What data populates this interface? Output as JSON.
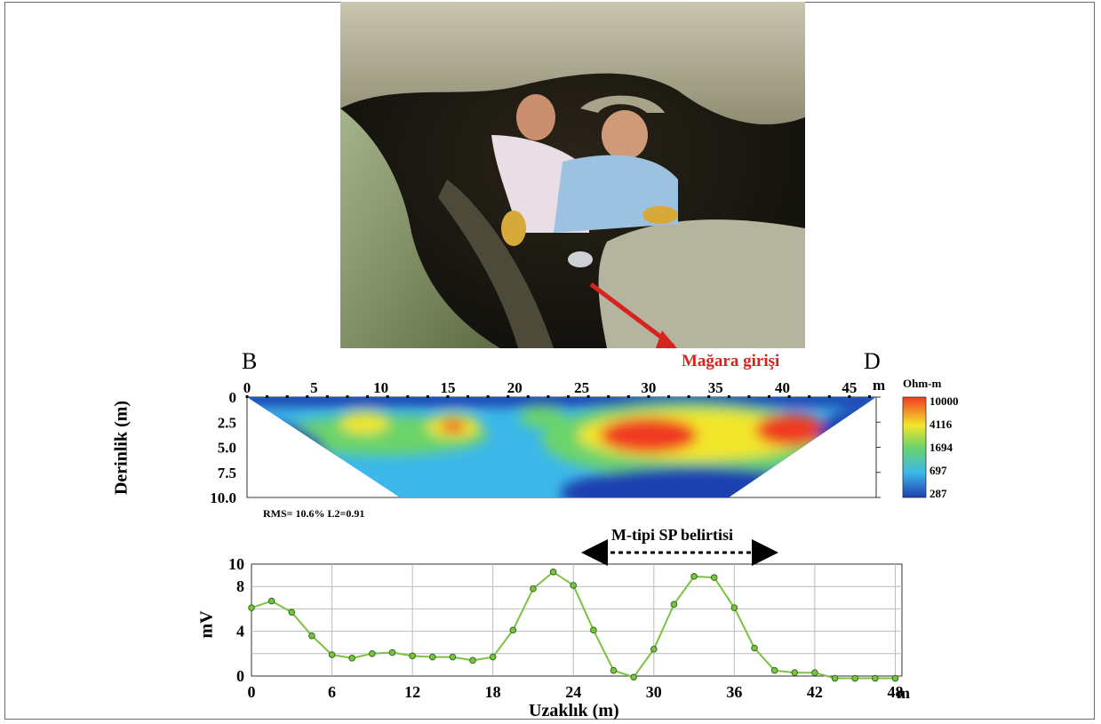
{
  "photo": {
    "annotation": "Mağara girişi",
    "annotation_color": "#d7231e"
  },
  "resistivity_section": {
    "left_label": "B",
    "right_label": "D",
    "x_ticks": [
      "0",
      "5",
      "10",
      "15",
      "20",
      "25",
      "30",
      "35",
      "40",
      "45"
    ],
    "x_unit": "m",
    "y_ticks": [
      "0",
      "2.5",
      "5.0",
      "7.5",
      "10.0"
    ],
    "y_label": "Derinlik  (m)",
    "rms_text": "RMS=  10.6% L2=0.91",
    "colorbar_title": "Ohm-m",
    "colorbar_ticks": [
      "10000",
      "4116",
      "1694",
      "697",
      "287"
    ],
    "colors": {
      "low": "#1f3fb0",
      "mid_low": "#3cb8ea",
      "mid": "#6cd46a",
      "mid_high": "#f2e62a",
      "high": "#f03a22"
    }
  },
  "chart_data": {
    "type": "line",
    "title": "M-tipi SP belirtisi",
    "xlabel": "Uzaklık  (m)",
    "ylabel": "mV",
    "x_unit": "m",
    "xlim": [
      0,
      48.5
    ],
    "ylim": [
      0,
      10
    ],
    "x_ticks": [
      0,
      6,
      12,
      18,
      24,
      30,
      36,
      42,
      48
    ],
    "y_ticks": [
      0,
      4,
      8,
      10
    ],
    "grid": true,
    "line_color": "#7cc242",
    "series": [
      {
        "x": [
          0,
          1.5,
          3,
          4.5,
          6,
          7.5,
          9,
          10.5,
          12,
          13.5,
          15,
          16.5,
          18,
          19.5,
          21,
          22.5,
          24,
          25.5,
          27,
          28.5,
          30,
          31.5,
          33,
          34.5,
          36,
          37.5,
          39,
          40.5,
          42,
          43.5,
          45,
          46.5,
          48
        ],
        "y": [
          6.1,
          6.7,
          5.7,
          3.6,
          1.9,
          1.6,
          2.0,
          2.1,
          1.8,
          1.7,
          1.7,
          1.4,
          1.7,
          4.1,
          7.8,
          9.3,
          8.1,
          4.1,
          0.5,
          -0.1,
          2.4,
          6.4,
          8.9,
          8.8,
          6.1,
          2.5,
          0.5,
          0.3,
          0.3,
          -0.2,
          -0.2,
          -0.2,
          -0.2
        ]
      }
    ]
  }
}
